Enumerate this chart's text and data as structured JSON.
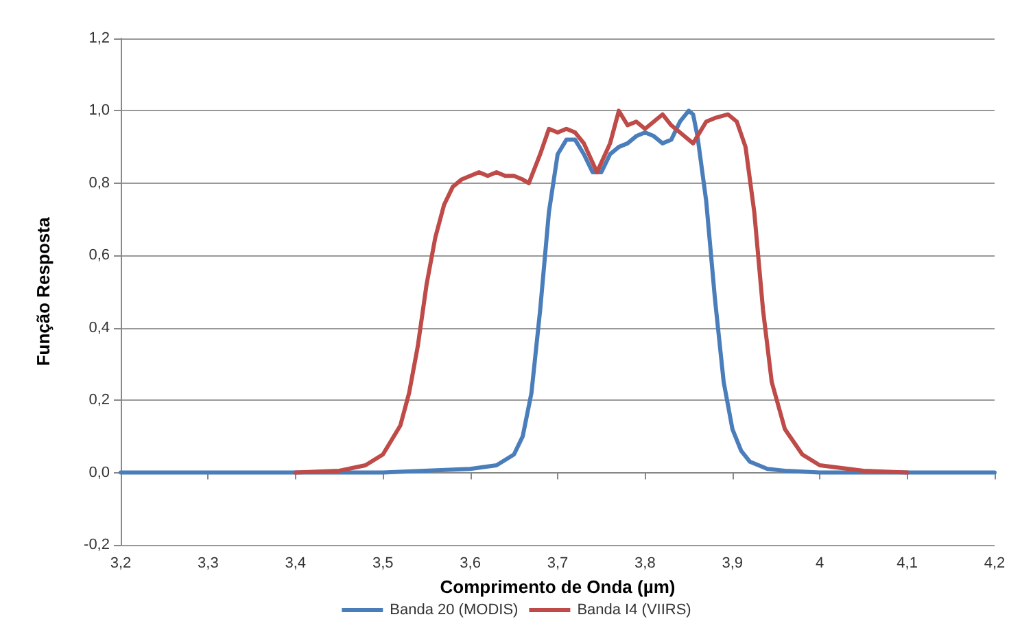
{
  "chart_data": {
    "type": "line",
    "xlabel": "Comprimento de Onda (µm)",
    "ylabel": "Função Resposta",
    "xlim": [
      3.2,
      4.2
    ],
    "xticks": [
      {
        "value": 3.2,
        "label": "3,2"
      },
      {
        "value": 3.3,
        "label": "3,3"
      },
      {
        "value": 3.4,
        "label": "3,4"
      },
      {
        "value": 3.5,
        "label": "3,5"
      },
      {
        "value": 3.6,
        "label": "3,6"
      },
      {
        "value": 3.7,
        "label": "3,7"
      },
      {
        "value": 3.8,
        "label": "3,8"
      },
      {
        "value": 3.9,
        "label": "3,9"
      },
      {
        "value": 4,
        "label": "4"
      },
      {
        "value": 4.1,
        "label": "4,1"
      },
      {
        "value": 4.2,
        "label": "4,2"
      }
    ],
    "ylim": [
      -0.2,
      1.2
    ],
    "yticks": [
      {
        "value": -0.2,
        "label": "-0,2"
      },
      {
        "value": 0,
        "label": "0,0"
      },
      {
        "value": 0.2,
        "label": "0,2"
      },
      {
        "value": 0.4,
        "label": "0,4"
      },
      {
        "value": 0.6,
        "label": "0,6"
      },
      {
        "value": 0.8,
        "label": "0,8"
      },
      {
        "value": 1,
        "label": "1,0"
      },
      {
        "value": 1.2,
        "label": "1,2"
      }
    ],
    "grid": "y",
    "legend": "bottom",
    "marker": "none",
    "line_style": "solid",
    "series": [
      {
        "name": "Banda 20 (MODIS)",
        "color": "#4a7ebb",
        "x": [
          3.2,
          3.5,
          3.6,
          3.63,
          3.65,
          3.66,
          3.67,
          3.68,
          3.69,
          3.7,
          3.71,
          3.72,
          3.73,
          3.74,
          3.75,
          3.76,
          3.77,
          3.78,
          3.79,
          3.8,
          3.81,
          3.82,
          3.83,
          3.84,
          3.85,
          3.855,
          3.86,
          3.87,
          3.88,
          3.89,
          3.9,
          3.91,
          3.92,
          3.94,
          3.96,
          4,
          4.1,
          4.2
        ],
        "values": [
          0,
          0,
          0.01,
          0.02,
          0.05,
          0.1,
          0.22,
          0.45,
          0.72,
          0.88,
          0.92,
          0.92,
          0.88,
          0.83,
          0.83,
          0.88,
          0.9,
          0.91,
          0.93,
          0.94,
          0.93,
          0.91,
          0.92,
          0.97,
          1,
          0.99,
          0.93,
          0.75,
          0.48,
          0.25,
          0.12,
          0.06,
          0.03,
          0.01,
          0.005,
          0,
          0,
          0
        ]
      },
      {
        "name": "Banda I4 (VIIRS)",
        "color": "#be4b48",
        "x": [
          3.4,
          3.45,
          3.48,
          3.5,
          3.52,
          3.53,
          3.54,
          3.55,
          3.56,
          3.57,
          3.58,
          3.59,
          3.6,
          3.61,
          3.62,
          3.63,
          3.64,
          3.65,
          3.66,
          3.667,
          3.68,
          3.69,
          3.7,
          3.71,
          3.72,
          3.73,
          3.745,
          3.76,
          3.77,
          3.78,
          3.79,
          3.8,
          3.81,
          3.82,
          3.83,
          3.84,
          3.855,
          3.87,
          3.88,
          3.895,
          3.905,
          3.915,
          3.925,
          3.935,
          3.945,
          3.96,
          3.98,
          4,
          4.05,
          4.1
        ],
        "values": [
          0,
          0.005,
          0.02,
          0.05,
          0.13,
          0.22,
          0.35,
          0.52,
          0.65,
          0.74,
          0.79,
          0.81,
          0.82,
          0.83,
          0.82,
          0.83,
          0.82,
          0.82,
          0.81,
          0.8,
          0.88,
          0.95,
          0.94,
          0.95,
          0.94,
          0.91,
          0.83,
          0.91,
          1,
          0.96,
          0.97,
          0.95,
          0.97,
          0.99,
          0.96,
          0.94,
          0.91,
          0.97,
          0.98,
          0.99,
          0.97,
          0.9,
          0.72,
          0.45,
          0.25,
          0.12,
          0.05,
          0.02,
          0.005,
          0
        ]
      }
    ]
  }
}
